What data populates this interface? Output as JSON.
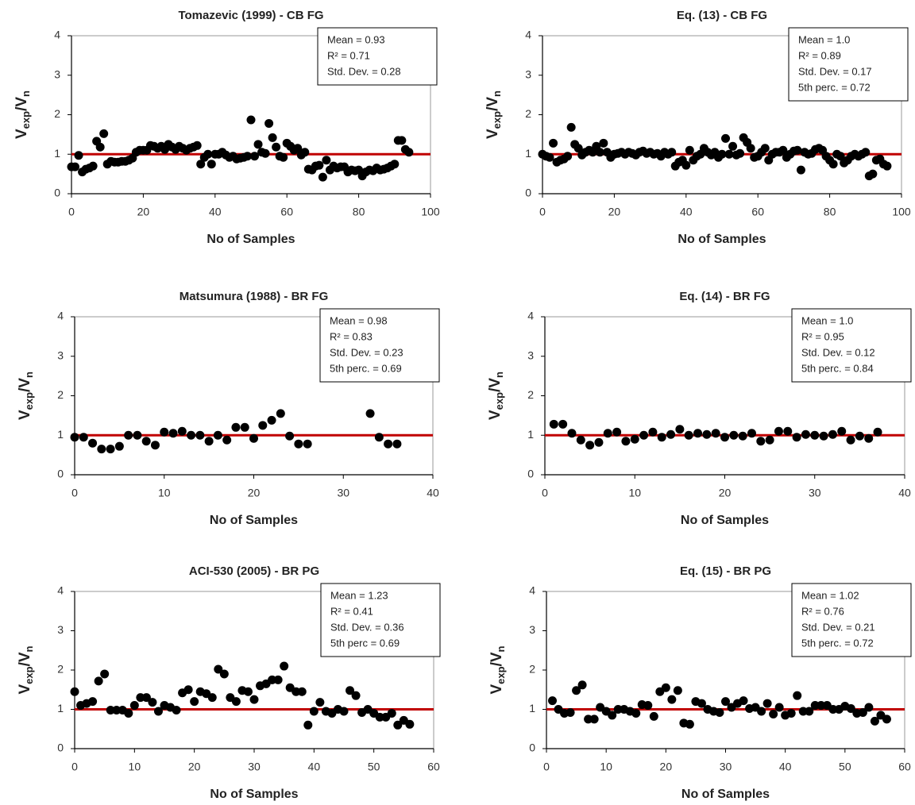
{
  "chart_data": [
    {
      "type": "scatter",
      "title": "Tomazevic (1999) - CB FG",
      "xlabel": "No of Samples",
      "ylabel": [
        "V",
        "exp",
        "/V",
        "n"
      ],
      "annotation": [
        "Mean = 0.93",
        "R² = 0.71",
        "Std. Dev. = 0.28"
      ],
      "x": [
        0,
        1,
        2,
        3,
        4,
        5,
        6,
        7,
        8,
        9,
        10,
        11,
        12,
        13,
        14,
        15,
        16,
        17,
        18,
        19,
        20,
        21,
        22,
        23,
        24,
        25,
        26,
        27,
        28,
        29,
        30,
        31,
        32,
        33,
        34,
        35,
        36,
        37,
        38,
        39,
        40,
        41,
        42,
        43,
        44,
        45,
        46,
        47,
        48,
        49,
        50,
        51,
        52,
        53,
        54,
        55,
        56,
        57,
        58,
        59,
        60,
        61,
        62,
        63,
        64,
        65,
        66,
        67,
        68,
        69,
        70,
        71,
        72,
        73,
        74,
        75,
        76,
        77,
        78,
        79,
        80,
        81,
        82,
        83,
        84,
        85,
        86,
        87,
        88,
        89,
        90,
        91,
        92,
        93,
        94
      ],
      "values": [
        0.68,
        0.68,
        0.97,
        0.55,
        0.62,
        0.65,
        0.7,
        1.33,
        1.18,
        1.52,
        0.75,
        0.82,
        0.8,
        0.8,
        0.82,
        0.82,
        0.85,
        0.9,
        1.05,
        1.1,
        1.1,
        1.1,
        1.22,
        1.2,
        1.15,
        1.2,
        1.12,
        1.25,
        1.18,
        1.12,
        1.2,
        1.15,
        1.1,
        1.15,
        1.18,
        1.22,
        0.75,
        0.92,
        1.0,
        0.75,
        1.0,
        1.0,
        1.05,
        0.98,
        0.92,
        0.95,
        0.88,
        0.9,
        0.92,
        0.95,
        1.87,
        0.95,
        1.25,
        1.05,
        1.02,
        1.78,
        1.42,
        1.18,
        0.95,
        0.92,
        1.28,
        1.2,
        1.1,
        1.15,
        0.98,
        1.05,
        0.62,
        0.6,
        0.7,
        0.72,
        0.42,
        0.85,
        0.6,
        0.7,
        0.65,
        0.68,
        0.68,
        0.55,
        0.6,
        0.58,
        0.6,
        0.45,
        0.55,
        0.6,
        0.58,
        0.65,
        0.6,
        0.62,
        0.65,
        0.7,
        0.75,
        1.35,
        1.35,
        1.12,
        1.05
      ],
      "color": "#000000",
      "reference_line": {
        "value": 1,
        "color": "#c00000"
      },
      "xlim": [
        0,
        100
      ],
      "xticks": [
        0,
        20,
        40,
        60,
        80,
        100
      ],
      "ylim": [
        0,
        4
      ],
      "yticks": [
        0,
        1,
        2,
        3,
        4
      ]
    },
    {
      "type": "scatter",
      "title": "Eq. (13) - CB FG",
      "xlabel": "No of Samples",
      "ylabel": [
        "V",
        "exp",
        "/V",
        "n"
      ],
      "annotation": [
        "Mean = 1.0",
        "R² = 0.89",
        "Std. Dev. = 0.17",
        "5th perc. = 0.72"
      ],
      "x": [
        0,
        1,
        2,
        3,
        4,
        5,
        6,
        7,
        8,
        9,
        10,
        11,
        12,
        13,
        14,
        15,
        16,
        17,
        18,
        19,
        20,
        21,
        22,
        23,
        24,
        25,
        26,
        27,
        28,
        29,
        30,
        31,
        32,
        33,
        34,
        35,
        36,
        37,
        38,
        39,
        40,
        41,
        42,
        43,
        44,
        45,
        46,
        47,
        48,
        49,
        50,
        51,
        52,
        53,
        54,
        55,
        56,
        57,
        58,
        59,
        60,
        61,
        62,
        63,
        64,
        65,
        66,
        67,
        68,
        69,
        70,
        71,
        72,
        73,
        74,
        75,
        76,
        77,
        78,
        79,
        80,
        81,
        82,
        83,
        84,
        85,
        86,
        87,
        88,
        89,
        90,
        91,
        92,
        93,
        94,
        95,
        96
      ],
      "values": [
        1.0,
        0.95,
        0.92,
        1.28,
        0.8,
        0.85,
        0.88,
        0.95,
        1.68,
        1.25,
        1.15,
        0.98,
        1.05,
        1.1,
        1.05,
        1.2,
        1.05,
        1.28,
        1.05,
        0.92,
        1.0,
        1.02,
        1.05,
        1.0,
        1.05,
        1.02,
        0.98,
        1.05,
        1.08,
        1.02,
        1.05,
        1.0,
        1.02,
        0.95,
        1.05,
        1.0,
        1.05,
        0.7,
        0.8,
        0.85,
        0.72,
        1.1,
        0.85,
        0.95,
        1.0,
        1.15,
        1.05,
        0.98,
        1.05,
        0.92,
        1.0,
        1.4,
        1.0,
        1.2,
        0.98,
        1.02,
        1.42,
        1.3,
        1.15,
        0.92,
        0.95,
        1.05,
        1.15,
        0.85,
        1.0,
        1.05,
        1.05,
        1.1,
        0.92,
        1.0,
        1.08,
        1.1,
        0.6,
        1.05,
        1.0,
        1.02,
        1.12,
        1.15,
        1.1,
        0.95,
        0.85,
        0.75,
        1.0,
        0.95,
        0.78,
        0.85,
        0.95,
        1.0,
        0.95,
        1.0,
        1.05,
        0.45,
        0.5,
        0.85,
        0.88,
        0.75,
        0.7
      ],
      "color": "#000000",
      "reference_line": {
        "value": 1,
        "color": "#c00000"
      },
      "xlim": [
        0,
        100
      ],
      "xticks": [
        0,
        20,
        40,
        60,
        80,
        100
      ],
      "ylim": [
        0,
        4
      ],
      "yticks": [
        0,
        1,
        2,
        3,
        4
      ]
    },
    {
      "type": "scatter",
      "title": "Matsumura (1988) - BR FG",
      "xlabel": "No of Samples",
      "ylabel": [
        "V",
        "exp",
        "/V",
        "n"
      ],
      "annotation": [
        "Mean = 0.98",
        "R² = 0.83",
        "Std. Dev. = 0.23",
        "5th perc. = 0.69"
      ],
      "x": [
        0,
        1,
        2,
        3,
        4,
        5,
        6,
        7,
        8,
        9,
        10,
        11,
        12,
        13,
        14,
        15,
        16,
        17,
        18,
        19,
        20,
        21,
        22,
        23,
        24,
        25,
        26,
        33,
        34,
        35,
        36
      ],
      "values": [
        0.95,
        0.95,
        0.8,
        0.65,
        0.65,
        0.72,
        1.0,
        1.0,
        0.85,
        0.75,
        1.08,
        1.05,
        1.1,
        1.0,
        1.0,
        0.85,
        1.0,
        0.88,
        1.2,
        1.2,
        0.92,
        1.25,
        1.38,
        1.55,
        0.98,
        0.78,
        0.78,
        1.55,
        0.95,
        0.78,
        0.78
      ],
      "color": "#000000",
      "reference_line": {
        "value": 1,
        "color": "#c00000"
      },
      "xlim": [
        0,
        40
      ],
      "xticks": [
        0,
        10,
        20,
        30,
        40
      ],
      "ylim": [
        0,
        4
      ],
      "yticks": [
        0,
        1,
        2,
        3,
        4
      ]
    },
    {
      "type": "scatter",
      "title": "Eq. (14) - BR FG",
      "xlabel": "No of Samples",
      "ylabel": [
        "V",
        "exp",
        "/V",
        "n"
      ],
      "annotation": [
        "Mean = 1.0",
        "R² = 0.95",
        "Std. Dev. = 0.12",
        "5th perc. = 0.84"
      ],
      "x": [
        1,
        2,
        3,
        4,
        5,
        6,
        7,
        8,
        9,
        10,
        11,
        12,
        13,
        14,
        15,
        16,
        17,
        18,
        19,
        20,
        21,
        22,
        23,
        24,
        25,
        26,
        27,
        28,
        29,
        30,
        31,
        32,
        33,
        34,
        35,
        36,
        37
      ],
      "values": [
        1.28,
        1.28,
        1.05,
        0.88,
        0.75,
        0.82,
        1.05,
        1.08,
        0.85,
        0.9,
        1.0,
        1.08,
        0.95,
        1.02,
        1.15,
        1.0,
        1.05,
        1.02,
        1.05,
        0.95,
        1.0,
        0.98,
        1.05,
        0.85,
        0.88,
        1.1,
        1.1,
        0.95,
        1.02,
        1.0,
        0.98,
        1.02,
        1.1,
        0.88,
        0.98,
        0.92,
        1.08
      ],
      "color": "#000000",
      "reference_line": {
        "value": 1,
        "color": "#c00000"
      },
      "xlim": [
        0,
        40
      ],
      "xticks": [
        0,
        10,
        20,
        30,
        40
      ],
      "ylim": [
        0,
        4
      ],
      "yticks": [
        0,
        1,
        2,
        3,
        4
      ]
    },
    {
      "type": "scatter",
      "title": "ACI-530 (2005) - BR PG",
      "xlabel": "No of Samples",
      "ylabel": [
        "V",
        "exp",
        "/V",
        "n"
      ],
      "annotation": [
        "Mean = 1.23",
        "R² = 0.41",
        "Std. Dev. = 0.36",
        "5th perc = 0.69"
      ],
      "x": [
        0,
        1,
        2,
        3,
        4,
        5,
        6,
        7,
        8,
        9,
        10,
        11,
        12,
        13,
        14,
        15,
        16,
        17,
        18,
        19,
        20,
        21,
        22,
        23,
        24,
        25,
        26,
        27,
        28,
        29,
        30,
        31,
        32,
        33,
        34,
        35,
        36,
        37,
        38,
        39,
        40,
        41,
        42,
        43,
        44,
        45,
        46,
        47,
        48,
        49,
        50,
        51,
        52,
        53,
        54,
        55,
        56
      ],
      "values": [
        1.45,
        1.1,
        1.15,
        1.2,
        1.72,
        1.9,
        0.98,
        0.98,
        0.98,
        0.9,
        1.1,
        1.3,
        1.3,
        1.18,
        0.95,
        1.1,
        1.05,
        0.98,
        1.42,
        1.5,
        1.2,
        1.45,
        1.4,
        1.3,
        2.02,
        1.9,
        1.3,
        1.2,
        1.48,
        1.45,
        1.25,
        1.6,
        1.65,
        1.75,
        1.75,
        2.1,
        1.55,
        1.45,
        1.45,
        0.6,
        0.95,
        1.18,
        0.95,
        0.9,
        1.0,
        0.95,
        1.48,
        1.35,
        0.92,
        1.0,
        0.9,
        0.8,
        0.8,
        0.9,
        0.6,
        0.72,
        0.62
      ],
      "color": "#000000",
      "reference_line": {
        "value": 1,
        "color": "#c00000"
      },
      "xlim": [
        0,
        60
      ],
      "xticks": [
        0,
        10,
        20,
        30,
        40,
        50,
        60
      ],
      "ylim": [
        0,
        4
      ],
      "yticks": [
        0,
        1,
        2,
        3,
        4
      ]
    },
    {
      "type": "scatter",
      "title": "Eq. (15) - BR PG",
      "xlabel": "No of Samples",
      "ylabel": [
        "V",
        "exp",
        "/V",
        "n"
      ],
      "annotation": [
        "Mean = 1.02",
        "R² = 0.76",
        "Std. Dev. = 0.21",
        "5th perc. = 0.72"
      ],
      "x": [
        1,
        2,
        3,
        4,
        5,
        6,
        7,
        8,
        9,
        10,
        11,
        12,
        13,
        14,
        15,
        16,
        17,
        18,
        19,
        20,
        21,
        22,
        23,
        24,
        25,
        26,
        27,
        28,
        29,
        30,
        31,
        32,
        33,
        34,
        35,
        36,
        37,
        38,
        39,
        40,
        41,
        42,
        43,
        44,
        45,
        46,
        47,
        48,
        49,
        50,
        51,
        52,
        53,
        54,
        55,
        56,
        57
      ],
      "values": [
        1.22,
        1.0,
        0.9,
        0.92,
        1.48,
        1.62,
        0.75,
        0.75,
        1.05,
        0.95,
        0.85,
        1.0,
        1.0,
        0.95,
        0.9,
        1.12,
        1.1,
        0.82,
        1.45,
        1.55,
        1.25,
        1.48,
        0.65,
        0.62,
        1.2,
        1.15,
        1.0,
        0.95,
        0.92,
        1.2,
        1.05,
        1.15,
        1.22,
        1.02,
        1.05,
        0.95,
        1.15,
        0.88,
        1.05,
        0.85,
        0.9,
        1.35,
        0.95,
        0.95,
        1.1,
        1.1,
        1.1,
        1.0,
        1.0,
        1.08,
        1.02,
        0.9,
        0.92,
        1.05,
        0.7,
        0.85,
        0.75
      ],
      "color": "#000000",
      "reference_line": {
        "value": 1,
        "color": "#c00000"
      },
      "xlim": [
        0,
        60
      ],
      "xticks": [
        0,
        10,
        20,
        30,
        40,
        50,
        60
      ],
      "ylim": [
        0,
        4
      ],
      "yticks": [
        0,
        1,
        2,
        3,
        4
      ]
    }
  ]
}
